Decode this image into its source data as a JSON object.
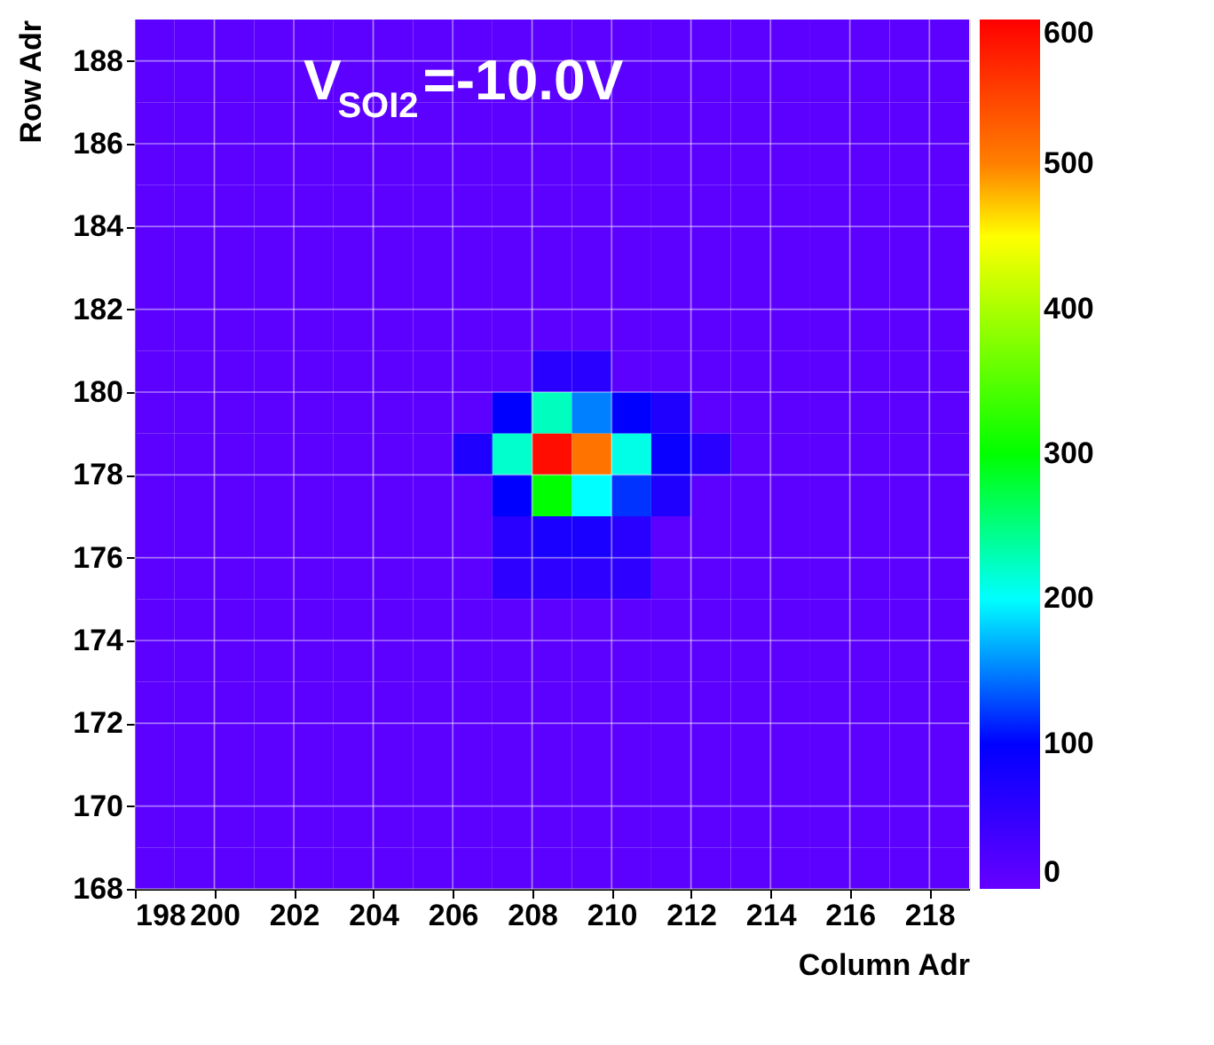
{
  "chart_data": {
    "type": "heatmap",
    "xlabel": "Column Adr",
    "ylabel": "Row Adr",
    "annotations": [
      "V$_{SOI2}$=-10.0V"
    ],
    "xlim": [
      198,
      219
    ],
    "ylim": [
      168,
      189
    ],
    "xticks": [
      198,
      200,
      202,
      204,
      206,
      208,
      210,
      212,
      214,
      216,
      218
    ],
    "yticks": [
      168,
      170,
      172,
      174,
      176,
      178,
      180,
      182,
      184,
      186,
      188
    ],
    "clim": [
      0,
      600
    ],
    "cticks": [
      0,
      100,
      200,
      300,
      400,
      500,
      600
    ],
    "grid": true,
    "cells": [
      [
        10,
        10,
        10,
        10,
        10,
        10,
        10,
        10,
        10,
        10,
        10,
        10,
        10,
        10,
        10,
        10,
        10,
        10,
        10,
        10,
        10
      ],
      [
        10,
        10,
        10,
        10,
        10,
        10,
        10,
        10,
        10,
        10,
        10,
        10,
        10,
        10,
        10,
        10,
        10,
        10,
        10,
        10,
        10
      ],
      [
        10,
        10,
        10,
        10,
        10,
        10,
        10,
        10,
        10,
        10,
        10,
        10,
        10,
        10,
        10,
        10,
        10,
        10,
        10,
        10,
        10
      ],
      [
        10,
        10,
        10,
        10,
        10,
        10,
        10,
        10,
        10,
        10,
        10,
        10,
        10,
        10,
        10,
        10,
        10,
        10,
        10,
        10,
        10
      ],
      [
        10,
        10,
        10,
        10,
        10,
        10,
        10,
        10,
        10,
        10,
        10,
        10,
        10,
        10,
        10,
        10,
        10,
        10,
        10,
        10,
        10
      ],
      [
        10,
        10,
        10,
        10,
        10,
        10,
        10,
        10,
        10,
        10,
        10,
        10,
        10,
        10,
        10,
        10,
        10,
        10,
        10,
        10,
        10
      ],
      [
        10,
        10,
        10,
        10,
        10,
        10,
        10,
        10,
        10,
        10,
        10,
        10,
        10,
        10,
        10,
        10,
        10,
        10,
        10,
        10,
        10
      ],
      [
        10,
        10,
        10,
        10,
        10,
        10,
        10,
        10,
        10,
        10,
        10,
        10,
        10,
        10,
        10,
        10,
        10,
        10,
        10,
        10,
        10
      ],
      [
        10,
        10,
        10,
        10,
        10,
        10,
        10,
        10,
        10,
        10,
        60,
        60,
        10,
        10,
        10,
        10,
        10,
        10,
        10,
        10,
        10
      ],
      [
        10,
        10,
        10,
        10,
        10,
        10,
        10,
        10,
        10,
        100,
        225,
        150,
        100,
        70,
        10,
        10,
        10,
        10,
        10,
        10,
        10
      ],
      [
        10,
        10,
        10,
        10,
        10,
        10,
        10,
        10,
        70,
        220,
        590,
        510,
        210,
        90,
        60,
        10,
        10,
        10,
        10,
        10,
        10
      ],
      [
        10,
        10,
        10,
        10,
        10,
        10,
        10,
        10,
        10,
        100,
        300,
        200,
        120,
        70,
        10,
        10,
        10,
        10,
        10,
        10,
        10
      ],
      [
        10,
        10,
        10,
        10,
        10,
        10,
        10,
        10,
        10,
        60,
        75,
        75,
        60,
        10,
        10,
        10,
        10,
        10,
        10,
        10,
        10
      ],
      [
        10,
        10,
        10,
        10,
        10,
        10,
        10,
        10,
        10,
        55,
        55,
        55,
        55,
        10,
        10,
        10,
        10,
        10,
        10,
        10,
        10
      ],
      [
        10,
        10,
        10,
        10,
        10,
        10,
        10,
        10,
        10,
        10,
        10,
        10,
        10,
        10,
        10,
        10,
        10,
        10,
        10,
        10,
        10
      ],
      [
        10,
        10,
        10,
        10,
        10,
        10,
        10,
        10,
        10,
        10,
        10,
        10,
        10,
        10,
        10,
        10,
        10,
        10,
        10,
        10,
        10
      ],
      [
        10,
        10,
        10,
        10,
        10,
        10,
        10,
        10,
        10,
        10,
        10,
        10,
        10,
        10,
        10,
        10,
        10,
        10,
        10,
        10,
        10
      ],
      [
        10,
        10,
        10,
        10,
        10,
        10,
        10,
        10,
        10,
        10,
        10,
        10,
        10,
        10,
        10,
        10,
        10,
        10,
        10,
        10,
        10
      ],
      [
        10,
        10,
        10,
        10,
        10,
        10,
        10,
        10,
        10,
        10,
        10,
        10,
        10,
        10,
        10,
        10,
        10,
        10,
        10,
        10,
        10
      ],
      [
        10,
        10,
        10,
        10,
        10,
        10,
        10,
        10,
        10,
        10,
        10,
        10,
        10,
        10,
        10,
        10,
        10,
        10,
        10,
        10,
        10
      ],
      [
        10,
        10,
        10,
        10,
        10,
        10,
        10,
        10,
        10,
        10,
        10,
        10,
        10,
        10,
        10,
        10,
        10,
        10,
        10,
        10,
        10
      ]
    ]
  }
}
